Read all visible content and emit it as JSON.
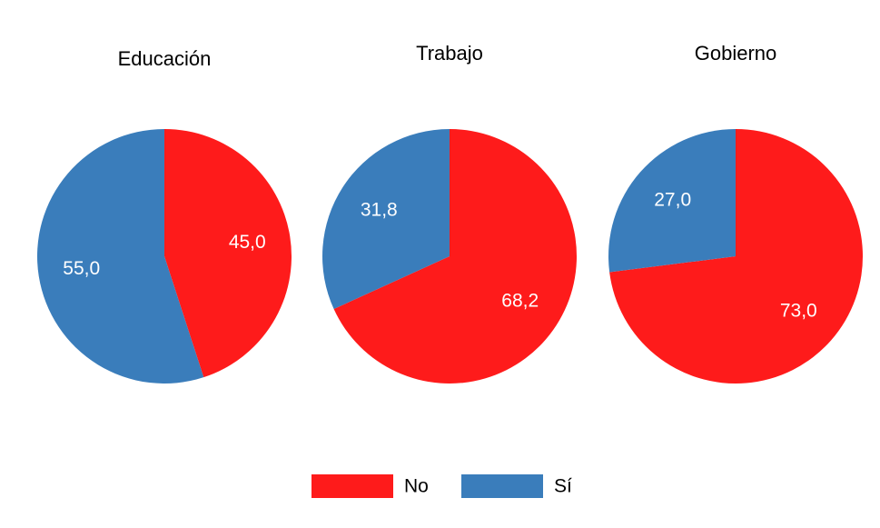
{
  "chart_data": [
    {
      "type": "pie",
      "title": "Educación",
      "categories": [
        "No",
        "Sí"
      ],
      "values": [
        45,
        55
      ],
      "value_labels": [
        "45,0",
        "55,0"
      ],
      "colors": [
        "#fe1b1b",
        "#3a7dbb"
      ]
    },
    {
      "type": "pie",
      "title": "Trabajo",
      "categories": [
        "No",
        "Sí"
      ],
      "values": [
        68.2,
        31.8
      ],
      "value_labels": [
        "68,2",
        "31,8"
      ],
      "colors": [
        "#fe1b1b",
        "#3a7dbb"
      ]
    },
    {
      "type": "pie",
      "title": "Gobierno",
      "categories": [
        "No",
        "Sí"
      ],
      "values": [
        73,
        27
      ],
      "value_labels": [
        "73,0",
        "27,0"
      ],
      "colors": [
        "#fe1b1b",
        "#3a7dbb"
      ]
    }
  ]
}
